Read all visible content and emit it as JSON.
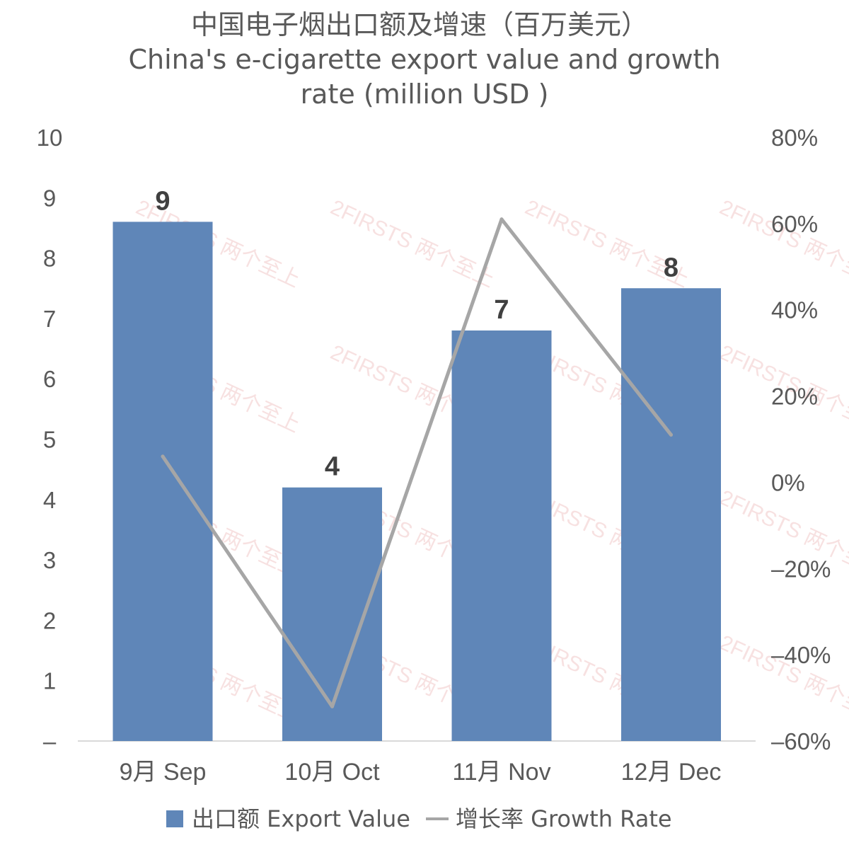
{
  "chart_data": {
    "type": "bar+line",
    "title": "中国电子烟出口额及增速（百万美元）",
    "subtitle_line1": "China's e-cigarette export value and growth",
    "subtitle_line2": "rate (million USD )",
    "categories": [
      "9月 Sep",
      "10月 Oct",
      "11月 Nov",
      "12月 Dec"
    ],
    "series": [
      {
        "name": "出口额 Export Value",
        "kind": "bar",
        "axis": "left",
        "color": "#5f86b8",
        "values": [
          8.6,
          4.2,
          6.8,
          7.5
        ],
        "data_labels": [
          "9",
          "4",
          "7",
          "8"
        ]
      },
      {
        "name": "增长率 Growth Rate",
        "kind": "line",
        "axis": "right",
        "color": "#a6a6a6",
        "values": [
          6,
          -52,
          61,
          11
        ]
      }
    ],
    "y_left": {
      "range": [
        0,
        10
      ],
      "ticks": [
        0,
        1,
        2,
        3,
        4,
        5,
        6,
        7,
        8,
        9,
        10
      ],
      "tick_labels": [
        "–",
        "1",
        "2",
        "3",
        "4",
        "5",
        "6",
        "7",
        "8",
        "9",
        "10"
      ]
    },
    "y_right": {
      "range": [
        -60,
        80
      ],
      "ticks": [
        -60,
        -40,
        -20,
        0,
        20,
        40,
        60,
        80
      ],
      "tick_labels": [
        "–60%",
        "–40%",
        "–20%",
        "0%",
        "20%",
        "40%",
        "60%",
        "80%"
      ]
    },
    "legend_position": "bottom",
    "grid": false,
    "watermark": "2FIRSTS 两个至上"
  }
}
